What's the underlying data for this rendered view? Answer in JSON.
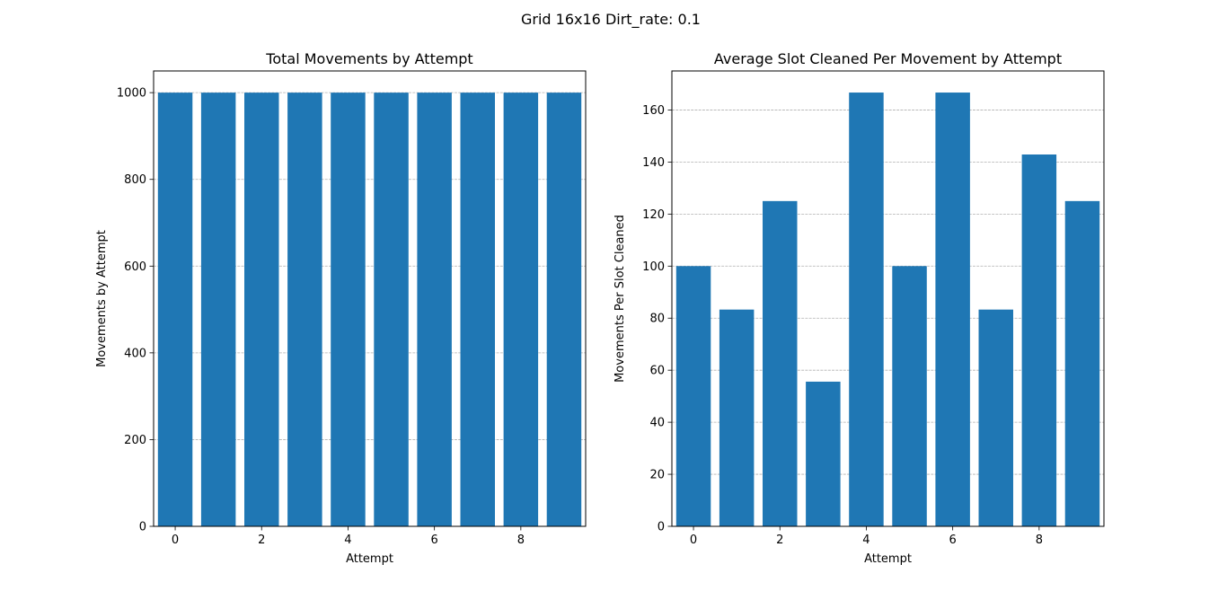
{
  "figure": {
    "suptitle": "Grid 16x16 Dirt_rate: 0.1",
    "bar_color": "#1f77b4",
    "grid_color": "#b0b0b0"
  },
  "chart_data": [
    {
      "type": "bar",
      "title": "Total Movements by Attempt",
      "xlabel": "Attempt",
      "ylabel": "Movements by Attempt",
      "categories": [
        0,
        1,
        2,
        3,
        4,
        5,
        6,
        7,
        8,
        9
      ],
      "values": [
        1000,
        1000,
        1000,
        1000,
        1000,
        1000,
        1000,
        1000,
        1000,
        1000
      ],
      "xlim": [
        -0.5,
        9.5
      ],
      "ylim": [
        0,
        1050
      ],
      "xticks": [
        0,
        2,
        4,
        6,
        8
      ],
      "yticks": [
        0,
        200,
        400,
        600,
        800,
        1000
      ],
      "grid": "y-dashed"
    },
    {
      "type": "bar",
      "title": "Average Slot Cleaned Per Movement by Attempt",
      "xlabel": "Attempt",
      "ylabel": "Movements Per Slot Cleaned",
      "categories": [
        0,
        1,
        2,
        3,
        4,
        5,
        6,
        7,
        8,
        9
      ],
      "values": [
        100,
        83.3,
        125,
        55.6,
        166.7,
        100,
        166.7,
        83.3,
        142.9,
        125
      ],
      "xlim": [
        -0.5,
        9.5
      ],
      "ylim": [
        0,
        175
      ],
      "xticks": [
        0,
        2,
        4,
        6,
        8
      ],
      "yticks": [
        0,
        20,
        40,
        60,
        80,
        100,
        120,
        140,
        160
      ],
      "grid": "y-dashed"
    }
  ]
}
